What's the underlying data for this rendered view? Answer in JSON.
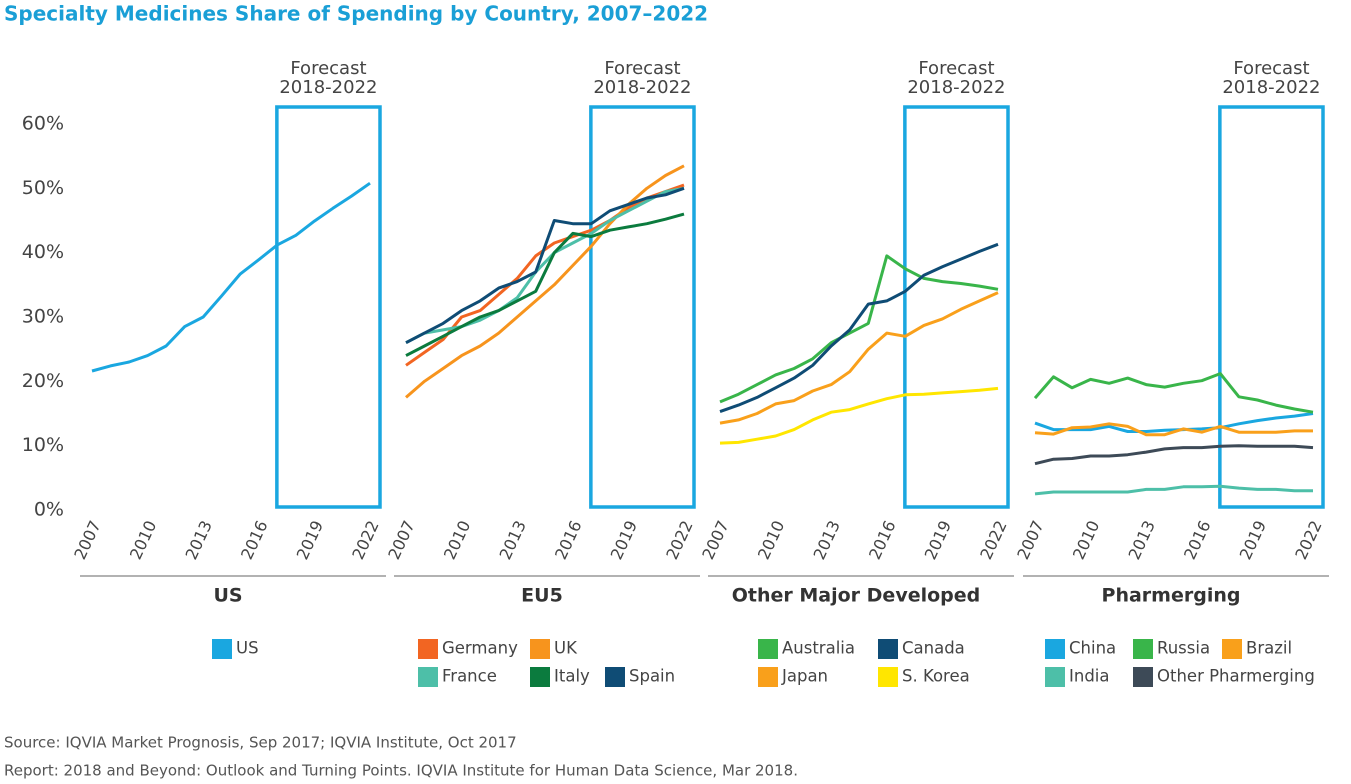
{
  "title": "Specialty Medicines Share of Spending by Country, 2007–2022",
  "source": "Source: IQVIA Market Prognosis, Sep 2017; IQVIA Institute, Oct 2017",
  "report": "Report: 2018 and Beyond: Outlook and Turning Points. IQVIA Institute for Human Data Science, Mar 2018.",
  "chart_data": [
    {
      "type": "line",
      "xlabel": "US",
      "forecast_label": [
        "Forecast",
        "2018-2022"
      ],
      "x": [
        2007,
        2008,
        2009,
        2010,
        2011,
        2012,
        2013,
        2014,
        2015,
        2016,
        2017,
        2018,
        2019,
        2020,
        2021,
        2022
      ],
      "xlim": [
        2007,
        2022
      ],
      "xticks": [
        2007,
        2010,
        2013,
        2016,
        2019,
        2022
      ],
      "ylim": [
        0,
        60
      ],
      "yticks": [
        {
          "value": 0,
          "label": "0%"
        },
        {
          "value": 10,
          "label": "10%"
        },
        {
          "value": 20,
          "label": "20%"
        },
        {
          "value": 30,
          "label": "30%"
        },
        {
          "value": 40,
          "label": "40%"
        },
        {
          "value": 50,
          "label": "50%"
        },
        {
          "value": 60,
          "label": "60%"
        }
      ],
      "series": [
        {
          "name": "US",
          "color": "#1aa7e0",
          "values": [
            21.6,
            22.4,
            23,
            24,
            25.5,
            28.5,
            30,
            33.3,
            36.7,
            38.9,
            41.2,
            42.7,
            44.9,
            46.9,
            48.8,
            50.8
          ]
        }
      ]
    },
    {
      "type": "line",
      "xlabel": "EU5",
      "forecast_label": [
        "Forecast",
        "2018-2022"
      ],
      "x": [
        2007,
        2008,
        2009,
        2010,
        2011,
        2012,
        2013,
        2014,
        2015,
        2016,
        2017,
        2018,
        2019,
        2020,
        2021,
        2022
      ],
      "xlim": [
        2007,
        2022
      ],
      "xticks": [
        2007,
        2010,
        2013,
        2016,
        2019,
        2022
      ],
      "ylim": [
        0,
        60
      ],
      "series": [
        {
          "name": "Germany",
          "color": "#f26522",
          "values": [
            22.5,
            24.5,
            26.5,
            30,
            31,
            33.5,
            36,
            39.5,
            41.5,
            42.5,
            43.5,
            45,
            47,
            48.5,
            49.5,
            50.5
          ]
        },
        {
          "name": "UK",
          "color": "#f7941d",
          "values": [
            17.5,
            20,
            22,
            24,
            25.5,
            27.5,
            30,
            32.5,
            35,
            38,
            41,
            44.5,
            47.5,
            50,
            52,
            53.5
          ]
        },
        {
          "name": "France",
          "color": "#4dbfa8",
          "values": [
            26,
            27.5,
            28,
            28.5,
            29.5,
            31,
            33,
            37,
            40,
            41.5,
            43,
            45,
            46.5,
            48,
            49.5,
            50
          ]
        },
        {
          "name": "Italy",
          "color": "#0b7b3e",
          "values": [
            24,
            25.5,
            27,
            28.5,
            30,
            31,
            32.5,
            34,
            40,
            43,
            42.5,
            43.5,
            44,
            44.5,
            45.2,
            46
          ]
        },
        {
          "name": "Spain",
          "color": "#0f4c75",
          "values": [
            26,
            27.5,
            29,
            31,
            32.5,
            34.5,
            35.5,
            37,
            45,
            44.5,
            44.5,
            46.5,
            47.5,
            48.5,
            49,
            50
          ]
        }
      ]
    },
    {
      "type": "line",
      "xlabel": "Other Major Developed",
      "forecast_label": [
        "Forecast",
        "2018-2022"
      ],
      "x": [
        2007,
        2008,
        2009,
        2010,
        2011,
        2012,
        2013,
        2014,
        2015,
        2016,
        2017,
        2018,
        2019,
        2020,
        2021,
        2022
      ],
      "xlim": [
        2007,
        2022
      ],
      "xticks": [
        2007,
        2010,
        2013,
        2016,
        2019,
        2022
      ],
      "ylim": [
        0,
        60
      ],
      "series": [
        {
          "name": "Australia",
          "color": "#39b54a",
          "values": [
            16.8,
            18,
            19.5,
            21,
            22,
            23.5,
            26,
            27.5,
            29,
            39.5,
            37.5,
            36,
            35.5,
            35.2,
            34.8,
            34.3
          ]
        },
        {
          "name": "Canada",
          "color": "#0f4c75",
          "values": [
            15.3,
            16.3,
            17.5,
            19,
            20.5,
            22.5,
            25.5,
            28,
            32,
            32.5,
            34,
            36.5,
            37.8,
            39,
            40.2,
            41.3
          ]
        },
        {
          "name": "Japan",
          "color": "#f9a01b",
          "values": [
            13.5,
            14,
            15,
            16.5,
            17,
            18.5,
            19.5,
            21.5,
            25,
            27.5,
            27,
            28.7,
            29.7,
            31.2,
            32.5,
            33.8
          ]
        },
        {
          "name": "S. Korea",
          "color": "#ffe600",
          "values": [
            10.4,
            10.5,
            11,
            11.5,
            12.5,
            14,
            15.2,
            15.6,
            16.5,
            17.3,
            17.9,
            18,
            18.2,
            18.4,
            18.6,
            18.9
          ]
        }
      ]
    },
    {
      "type": "line",
      "xlabel": "Pharmerging",
      "forecast_label": [
        "Forecast",
        "2018-2022"
      ],
      "x": [
        2007,
        2008,
        2009,
        2010,
        2011,
        2012,
        2013,
        2014,
        2015,
        2016,
        2017,
        2018,
        2019,
        2020,
        2021,
        2022
      ],
      "xlim": [
        2007,
        2022
      ],
      "xticks": [
        2007,
        2010,
        2013,
        2016,
        2019,
        2022
      ],
      "ylim": [
        0,
        60
      ],
      "series": [
        {
          "name": "China",
          "color": "#1aa7e0",
          "values": [
            13.5,
            12.5,
            12.5,
            12.5,
            13,
            12.2,
            12.2,
            12.4,
            12.5,
            12.6,
            12.8,
            13.4,
            13.9,
            14.3,
            14.6,
            15
          ]
        },
        {
          "name": "Russia",
          "color": "#39b54a",
          "values": [
            17.4,
            20.7,
            19,
            20.3,
            19.7,
            20.5,
            19.5,
            19.1,
            19.7,
            20.1,
            21.2,
            17.6,
            17.1,
            16.3,
            15.7,
            15.2
          ]
        },
        {
          "name": "Brazil",
          "color": "#f9a01b",
          "values": [
            12,
            11.8,
            12.8,
            12.9,
            13.4,
            13,
            11.7,
            11.7,
            12.6,
            12.1,
            13,
            12.1,
            12.1,
            12.1,
            12.3,
            12.3
          ]
        },
        {
          "name": "India",
          "color": "#4dbfa8",
          "values": [
            2.5,
            2.8,
            2.8,
            2.8,
            2.8,
            2.8,
            3.2,
            3.2,
            3.6,
            3.6,
            3.7,
            3.4,
            3.2,
            3.2,
            3,
            3
          ]
        },
        {
          "name": "Other Pharmerging",
          "color": "#3d4a57",
          "values": [
            7.2,
            7.9,
            8,
            8.4,
            8.4,
            8.6,
            9,
            9.5,
            9.7,
            9.7,
            9.9,
            10,
            9.9,
            9.9,
            9.9,
            9.7
          ]
        }
      ]
    }
  ]
}
